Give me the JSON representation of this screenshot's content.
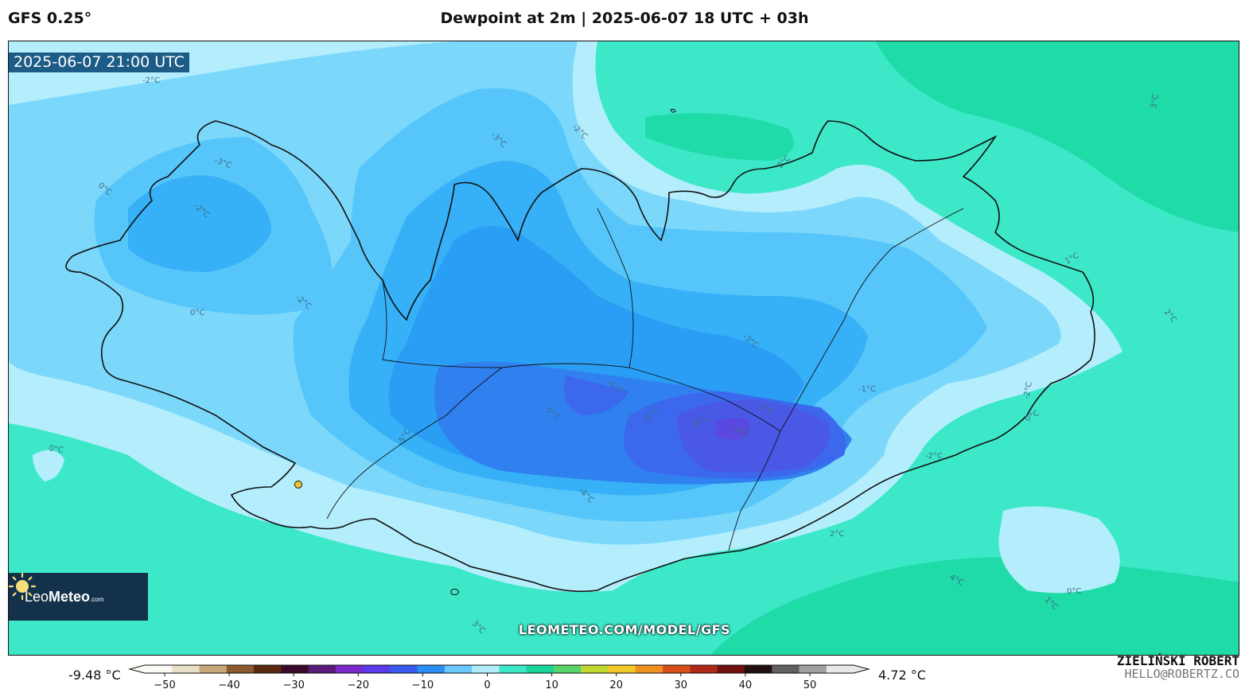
{
  "header": {
    "model": "GFS 0.25°",
    "title": "Dewpoint at 2m | 2025-06-07 18 UTC + 03h"
  },
  "map": {
    "valid_time": "2025-06-07 21:00 UTC",
    "watermark_url": "LEOMETEO.COM/MODEL/GFS",
    "location_marker": "yellow-dot",
    "contour_labels": [
      "-2°C",
      "-3°C",
      "-2°C",
      "2°C",
      "3°C",
      "0°C",
      "-3°C",
      "-2°C",
      "0°C",
      "-2°C",
      "1°C",
      "2°C",
      "-3°C",
      "-2°C",
      "-6°C",
      "-5°C",
      "-7°C",
      "-8°C",
      "-9°C",
      "-6°C",
      "-5°C",
      "-4°C",
      "0°C",
      "0°C",
      "-2°C",
      "2°C",
      "4°C",
      "1°C",
      "0°C",
      "3°C",
      "-1°C"
    ]
  },
  "logo": {
    "brand_main": "Leo",
    "brand_bold": "Meteo",
    "brand_suffix": ".com",
    "icon": "sun-icon"
  },
  "colorbar": {
    "min_label": "-9.48 °C",
    "max_label": "4.72 °C",
    "ticks": [
      "−50",
      "−40",
      "−30",
      "−20",
      "−10",
      "0",
      "10",
      "20",
      "30",
      "40",
      "50"
    ],
    "colors": [
      "#fbfbf3",
      "#e8e0c8",
      "#c8a878",
      "#8c5a2e",
      "#5a2a10",
      "#3a0a2a",
      "#5a1a7a",
      "#7a2ac8",
      "#5a3aea",
      "#3a5af0",
      "#2a8ef4",
      "#6ac8fa",
      "#b0ecfc",
      "#3ce8c8",
      "#18d49c",
      "#5ad46a",
      "#c0d830",
      "#f0c828",
      "#f09020",
      "#d85018",
      "#b02818",
      "#701010",
      "#201010",
      "#606060",
      "#a0a0a0",
      "#e8e8e8"
    ]
  },
  "credit": {
    "name": "ZIELIŃSKI ROBERT",
    "email": "HELLO@ROBERTZ.CO"
  }
}
